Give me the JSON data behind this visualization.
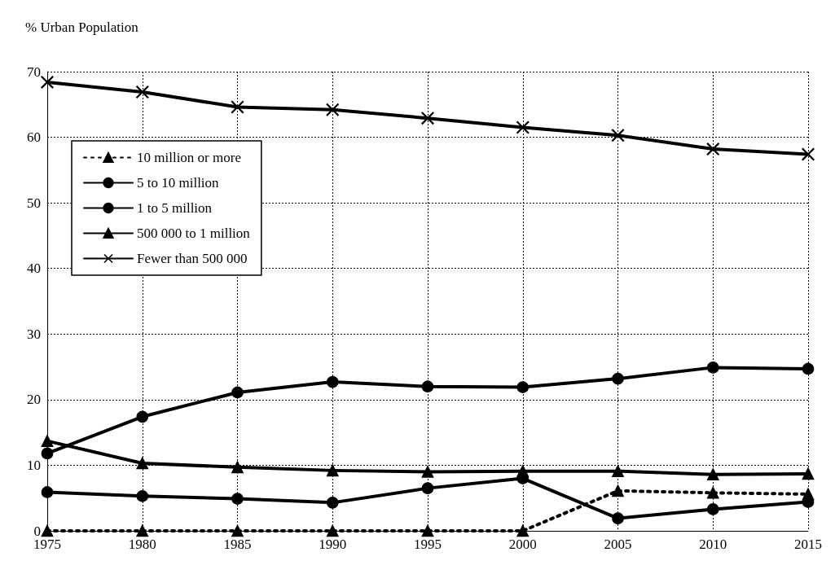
{
  "chart_data": {
    "type": "line",
    "ylabel": "% Urban Population",
    "categories": [
      "1975",
      "1980",
      "1985",
      "1990",
      "1995",
      "2000",
      "2005",
      "2010",
      "2015"
    ],
    "ylim": [
      0,
      70
    ],
    "yticks": [
      0,
      10,
      20,
      30,
      40,
      50,
      60,
      70
    ],
    "grid": true,
    "legend": "left",
    "series": [
      {
        "name": "10 million or more",
        "color": "#000000",
        "line_style": "dotted",
        "marker": "triangle",
        "values": [
          0,
          0,
          0,
          0,
          0,
          0,
          6.1,
          5.8,
          5.6
        ]
      },
      {
        "name": "5 to 10 million",
        "color": "#000000",
        "line_style": "solid",
        "marker": "circle",
        "values": [
          5.9,
          5.3,
          4.9,
          4.3,
          6.5,
          8.0,
          1.9,
          3.3,
          4.4
        ]
      },
      {
        "name": "1 to 5 million",
        "color": "#000000",
        "line_style": "solid",
        "marker": "circle",
        "values": [
          11.8,
          17.4,
          21.1,
          22.7,
          22.0,
          21.9,
          23.2,
          24.9,
          24.7
        ]
      },
      {
        "name": "500 000 to 1 million",
        "color": "#000000",
        "line_style": "solid",
        "marker": "triangle",
        "values": [
          13.7,
          10.3,
          9.7,
          9.2,
          9.0,
          9.1,
          9.1,
          8.6,
          8.7
        ]
      },
      {
        "name": "Fewer than 500 000",
        "color": "#000000",
        "line_style": "solid",
        "marker": "cross",
        "values": [
          68.4,
          66.9,
          64.6,
          64.2,
          62.9,
          61.5,
          60.3,
          58.2,
          57.4
        ]
      }
    ]
  }
}
